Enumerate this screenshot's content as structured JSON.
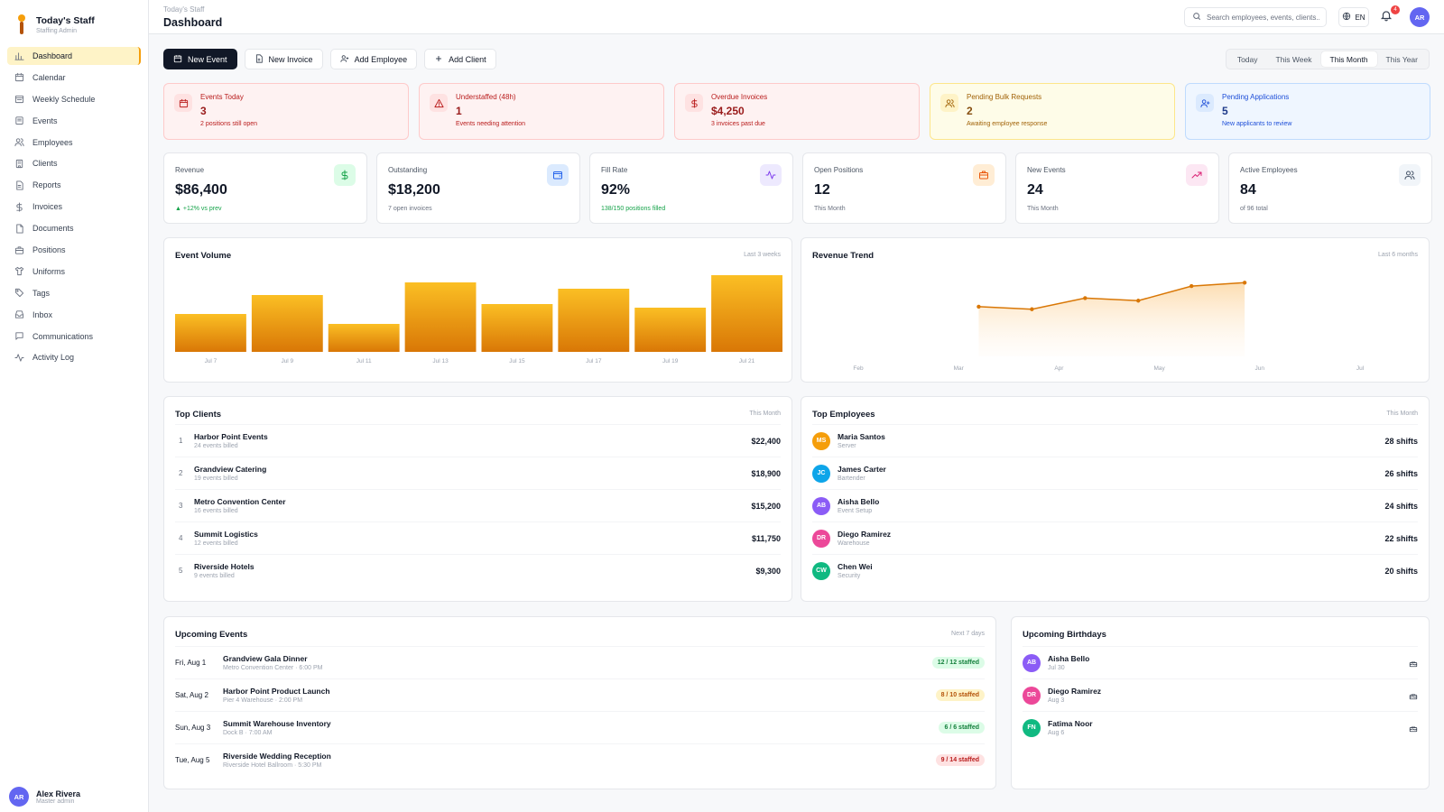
{
  "brand": {
    "title": "Today's Staff",
    "subtitle": "Staffing Admin"
  },
  "nav": [
    {
      "label": "Dashboard",
      "icon": "bar-chart-icon",
      "active": true
    },
    {
      "label": "Calendar",
      "icon": "calendar-icon"
    },
    {
      "label": "Weekly Schedule",
      "icon": "calendar-week-icon"
    },
    {
      "label": "Events",
      "icon": "event-icon"
    },
    {
      "label": "Employees",
      "icon": "users-icon"
    },
    {
      "label": "Clients",
      "icon": "building-icon"
    },
    {
      "label": "Reports",
      "icon": "report-icon"
    },
    {
      "label": "Invoices",
      "icon": "dollar-icon"
    },
    {
      "label": "Documents",
      "icon": "document-icon"
    },
    {
      "label": "Positions",
      "icon": "briefcase-icon"
    },
    {
      "label": "Uniforms",
      "icon": "shirt-icon"
    },
    {
      "label": "Tags",
      "icon": "tag-icon"
    },
    {
      "label": "Inbox",
      "icon": "inbox-icon"
    },
    {
      "label": "Communications",
      "icon": "message-icon"
    },
    {
      "label": "Activity Log",
      "icon": "activity-icon"
    }
  ],
  "user": {
    "initials": "AR",
    "name": "Alex Rivera",
    "role": "Master admin",
    "color": "#6366f1"
  },
  "header": {
    "breadcrumb": "Today's Staff",
    "title": "Dashboard",
    "search_placeholder": "Search employees, events, clients...",
    "lang": "EN",
    "notifications": "4",
    "avatar": "AR"
  },
  "actions": {
    "new_event": "New Event",
    "new_invoice": "New Invoice",
    "add_employee": "Add Employee",
    "add_client": "Add Client"
  },
  "ranges": [
    "Today",
    "This Week",
    "This Month",
    "This Year"
  ],
  "alerts": [
    {
      "title": "Events Today",
      "value": "3",
      "sub": "2 positions still open",
      "icon": "calendar-icon"
    },
    {
      "title": "Understaffed (48h)",
      "value": "1",
      "sub": "Events needing attention",
      "icon": "warning-icon"
    },
    {
      "title": "Overdue Invoices",
      "value": "$4,250",
      "sub": "3 invoices past due",
      "icon": "dollar-icon"
    },
    {
      "title": "Pending Bulk Requests",
      "value": "2",
      "sub": "Awaiting employee response",
      "icon": "users-icon"
    },
    {
      "title": "Pending Applications",
      "value": "5",
      "sub": "New applicants to review",
      "icon": "user-plus-icon"
    }
  ],
  "stats": [
    {
      "label": "Revenue",
      "value": "$86,400",
      "sub": "▲ +12% vs prev",
      "icon": "dollar-icon"
    },
    {
      "label": "Outstanding",
      "value": "$18,200",
      "sub": "7 open invoices",
      "icon": "wallet-icon"
    },
    {
      "label": "Fill Rate",
      "value": "92%",
      "sub": "138/150 positions filled",
      "icon": "activity-icon"
    },
    {
      "label": "Open Positions",
      "value": "12",
      "sub": "This Month",
      "icon": "briefcase-icon"
    },
    {
      "label": "New Events",
      "value": "24",
      "sub": "This Month",
      "icon": "trend-up-icon"
    },
    {
      "label": "Active Employees",
      "value": "84",
      "sub": "of 96 total",
      "icon": "users-icon"
    }
  ],
  "event_volume": {
    "title": "Event Volume",
    "meta": "Last 3 weeks"
  },
  "revenue_trend": {
    "title": "Revenue Trend",
    "meta": "Last 6 months"
  },
  "chart_data": [
    {
      "type": "bar",
      "title": "Event Volume",
      "categories": [
        "Jul 7",
        "Jul 9",
        "Jul 11",
        "Jul 13",
        "Jul 15",
        "Jul 17",
        "Jul 19",
        "Jul 21"
      ],
      "values": [
        42,
        63,
        31,
        77,
        53,
        70,
        49,
        85
      ],
      "ylim": [
        0,
        90
      ],
      "color": "#f59e0b"
    },
    {
      "type": "area",
      "title": "Revenue Trend",
      "categories": [
        "Feb",
        "Mar",
        "Apr",
        "May",
        "Jun",
        "Jul"
      ],
      "values": [
        58,
        55,
        68,
        65,
        82,
        86
      ],
      "ylim": [
        0,
        100
      ],
      "color": "#d97706"
    }
  ],
  "top_clients": {
    "title": "Top Clients",
    "meta": "This Month",
    "rows": [
      {
        "rank": "1",
        "name": "Harbor Point Events",
        "sub": "24 events billed",
        "value": "$22,400"
      },
      {
        "rank": "2",
        "name": "Grandview Catering",
        "sub": "19 events billed",
        "value": "$18,900"
      },
      {
        "rank": "3",
        "name": "Metro Convention Center",
        "sub": "16 events billed",
        "value": "$15,200"
      },
      {
        "rank": "4",
        "name": "Summit Logistics",
        "sub": "12 events billed",
        "value": "$11,750"
      },
      {
        "rank": "5",
        "name": "Riverside Hotels",
        "sub": "9 events billed",
        "value": "$9,300"
      }
    ]
  },
  "top_employees": {
    "title": "Top Employees",
    "meta": "This Month",
    "rows": [
      {
        "initials": "MS",
        "name": "Maria Santos",
        "sub": "Server",
        "value": "28 shifts",
        "color": "#f59e0b"
      },
      {
        "initials": "JC",
        "name": "James Carter",
        "sub": "Bartender",
        "value": "26 shifts",
        "color": "#0ea5e9"
      },
      {
        "initials": "AB",
        "name": "Aisha Bello",
        "sub": "Event Setup",
        "value": "24 shifts",
        "color": "#8b5cf6"
      },
      {
        "initials": "DR",
        "name": "Diego Ramirez",
        "sub": "Warehouse",
        "value": "22 shifts",
        "color": "#ec4899"
      },
      {
        "initials": "CW",
        "name": "Chen Wei",
        "sub": "Security",
        "value": "20 shifts",
        "color": "#10b981"
      }
    ]
  },
  "upcoming_events": {
    "title": "Upcoming Events",
    "meta": "Next 7 days",
    "rows": [
      {
        "date": "Fri, Aug 1",
        "name": "Grandview Gala Dinner",
        "sub": "Metro Convention Center · 6:00 PM",
        "staffed": "12 / 12 staffed",
        "status": "green"
      },
      {
        "date": "Sat, Aug 2",
        "name": "Harbor Point Product Launch",
        "sub": "Pier 4 Warehouse · 2:00 PM",
        "staffed": "8 / 10 staffed",
        "status": "amber"
      },
      {
        "date": "Sun, Aug 3",
        "name": "Summit Warehouse Inventory",
        "sub": "Dock B · 7:00 AM",
        "staffed": "6 / 6 staffed",
        "status": "green"
      },
      {
        "date": "Tue, Aug 5",
        "name": "Riverside Wedding Reception",
        "sub": "Riverside Hotel Ballroom · 5:30 PM",
        "staffed": "9 / 14 staffed",
        "status": "red"
      }
    ]
  },
  "birthdays": {
    "title": "Upcoming Birthdays",
    "rows": [
      {
        "initials": "AB",
        "name": "Aisha Bello",
        "sub": "Jul 30",
        "color": "#8b5cf6"
      },
      {
        "initials": "DR",
        "name": "Diego Ramirez",
        "sub": "Aug 3",
        "color": "#ec4899"
      },
      {
        "initials": "FN",
        "name": "Fatima Noor",
        "sub": "Aug 6",
        "color": "#10b981"
      }
    ]
  }
}
